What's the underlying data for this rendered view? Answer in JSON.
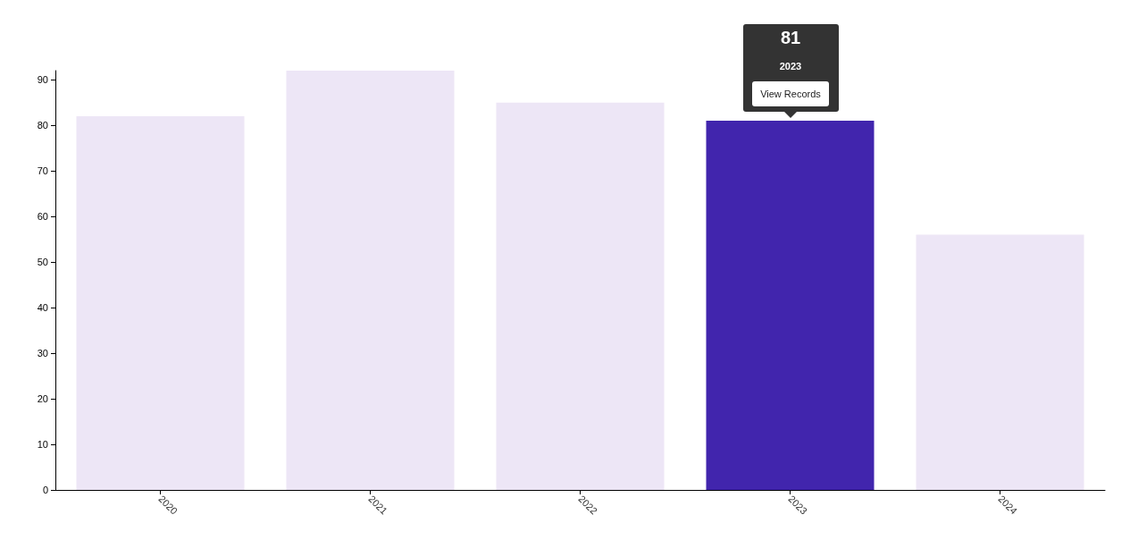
{
  "chart_data": {
    "type": "bar",
    "categories": [
      "2020",
      "2021",
      "2022",
      "2023",
      "2024"
    ],
    "values": [
      82,
      92,
      85,
      81,
      56
    ],
    "colors": [
      "#ede6f6",
      "#ede6f6",
      "#ede6f6",
      "#4125ad",
      "#ede6f6"
    ],
    "ylim": [
      0,
      92
    ],
    "yticks": [
      0,
      10,
      20,
      30,
      40,
      50,
      60,
      70,
      80,
      90
    ],
    "grid": false,
    "annotations": [
      "81",
      "2023",
      "View Records"
    ]
  }
}
